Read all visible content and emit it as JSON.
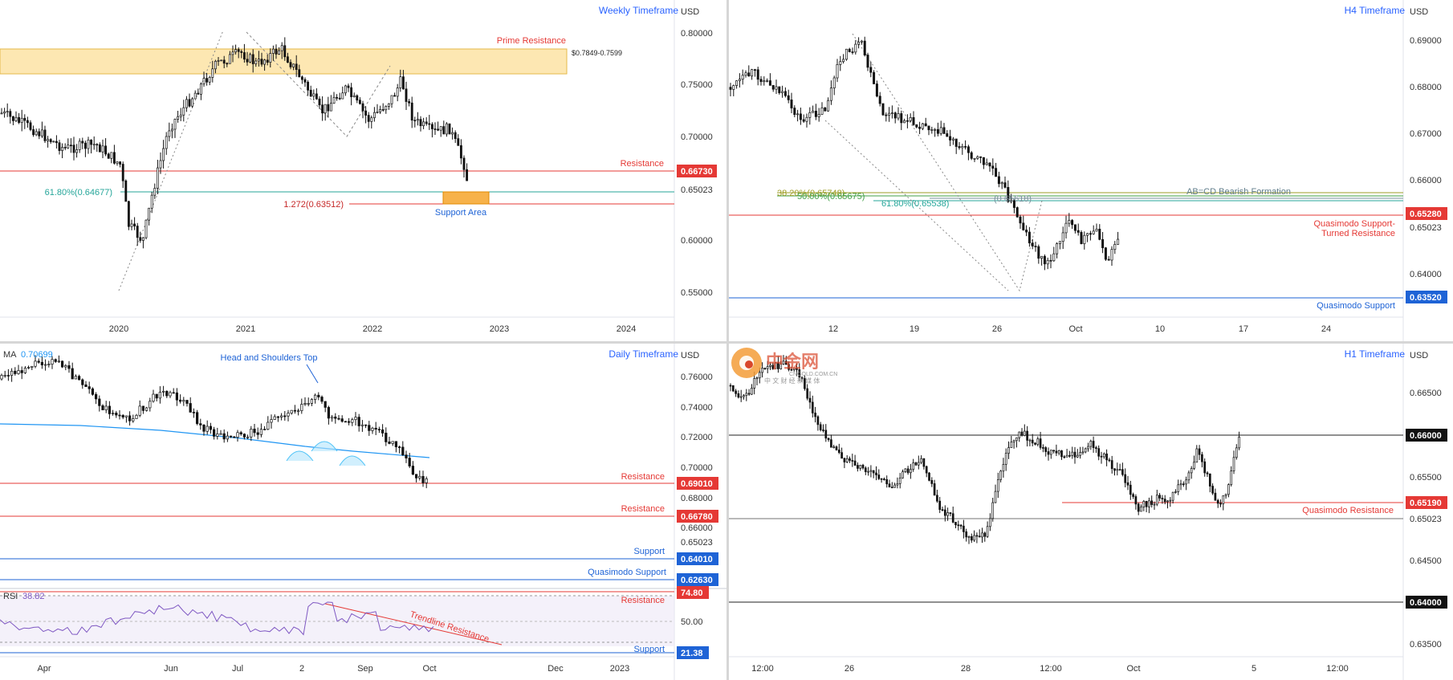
{
  "panels": {
    "weekly": {
      "title": "Weekly Timeframe",
      "currency": "USD",
      "y_ticks": [
        "0.80000",
        "0.75000",
        "0.70000",
        "0.65023",
        "0.60000",
        "0.55000"
      ],
      "x_ticks": [
        "2020",
        "2021",
        "2022",
        "2023",
        "2024"
      ],
      "labels": {
        "prime_resistance": "Prime Resistance",
        "prime_range": "$0.7849-0.7599",
        "resistance": "Resistance",
        "resistance_badge": "0.66730",
        "fib_618": "61.80%(0.64677)",
        "fib_1272": "1.272(0.63512)",
        "support_area": "Support Area"
      }
    },
    "h4": {
      "title": "H4 Timeframe",
      "currency": "USD",
      "y_ticks": [
        "0.69000",
        "0.68000",
        "0.67000",
        "0.66000",
        "0.65023",
        "0.64000"
      ],
      "x_ticks": [
        "12",
        "19",
        "26",
        "Oct",
        "10",
        "17",
        "24"
      ],
      "labels": {
        "fib_382": "38.20%(0.65748)",
        "fib_500": "50.00%(0.65675)",
        "fib_618": "61.80%(0.65538)",
        "abcd_value": "(0.65618)",
        "abcd": "AB=CD Bearish Formation",
        "qm_resist_1": "Quasimodo Support-",
        "qm_resist_2": "Turned Resistance",
        "qm_resist_badge": "0.65280",
        "qm_support": "Quasimodo Support",
        "qm_support_badge": "0.63520"
      }
    },
    "daily": {
      "title": "Daily Timeframe",
      "currency": "USD",
      "ma_label": "MA",
      "ma_value": "0.70699",
      "y_ticks": [
        "0.76000",
        "0.74000",
        "0.72000",
        "0.70000",
        "0.68000",
        "0.66000",
        "0.65023"
      ],
      "x_ticks": [
        "Apr",
        "Jun",
        "Jul",
        "2",
        "Sep",
        "Oct",
        "Dec",
        "2023"
      ],
      "labels": {
        "hs_top": "Head and Shoulders Top",
        "resistance1": "Resistance",
        "resistance1_badge": "0.69010",
        "resistance2": "Resistance",
        "resistance2_badge": "0.66780",
        "support": "Support",
        "support_badge": "0.64010",
        "qm_support": "Quasimodo Support",
        "qm_support_badge": "0.62630"
      },
      "rsi": {
        "label": "RSI",
        "value": "38.82",
        "resistance": "Resistance",
        "resistance_badge": "74.80",
        "mid_tick": "50.00",
        "trendline": "Trendline Resistance",
        "support": "Support",
        "support_badge": "21.38"
      }
    },
    "h1": {
      "title": "H1 Timeframe",
      "currency": "USD",
      "y_ticks": [
        "0.66500",
        "0.65500",
        "0.65023",
        "0.64500",
        "0.63500"
      ],
      "x_ticks": [
        "12:00",
        "26",
        "28",
        "12:00",
        "Oct",
        "5",
        "12:00"
      ],
      "labels": {
        "level_660": "0.66000",
        "qm_resistance": "Quasimodo Resistance",
        "qm_resistance_badge": "0.65190",
        "level_640": "0.64000"
      }
    }
  },
  "watermark": {
    "brand": "中金网",
    "url": "CNGOLD.COM.CN",
    "tagline": "中 文 财 经 新 媒 体"
  },
  "colors": {
    "resistance_red": "#e53935",
    "support_blue": "#1e63d6",
    "fib_teal": "#26a69a",
    "fib_green": "#43a047",
    "fib_olive": "#9e9d24",
    "ma_blue": "#2196f3",
    "rsi_purple": "#7e57c2",
    "prime_zone": "#fde7b2"
  },
  "chart_data": [
    {
      "type": "candlestick",
      "title": "Weekly Timeframe",
      "x": [
        "2020",
        "2021",
        "2022",
        "2023",
        "2024"
      ],
      "ylim": [
        0.53,
        0.82
      ],
      "levels": {
        "prime_resistance": [
          0.7599,
          0.7849
        ],
        "resistance": 0.6673,
        "fib_61_8": 0.64677,
        "fib_1_272": 0.63512,
        "current": 0.65023
      }
    },
    {
      "type": "candlestick",
      "title": "H4 Timeframe",
      "x": [
        "12",
        "19",
        "26",
        "Oct",
        "10",
        "17",
        "24"
      ],
      "ylim": [
        0.632,
        0.696
      ],
      "levels": {
        "fib_38_2": 0.65748,
        "fib_50": 0.65675,
        "fib_61_8": 0.65538,
        "abcd": 0.65618,
        "qm_support_turned_resistance": 0.6528,
        "qm_support": 0.6352,
        "current": 0.65023
      }
    },
    {
      "type": "candlestick",
      "title": "Daily Timeframe",
      "x": [
        "Apr",
        "Jun",
        "Jul",
        "2",
        "Sep",
        "Oct",
        "Dec",
        "2023"
      ],
      "ylim": [
        0.62,
        0.77
      ],
      "levels": {
        "resistance_1": 0.6901,
        "resistance_2": 0.6678,
        "support": 0.6401,
        "qm_support": 0.6263,
        "ma": 0.70699,
        "current": 0.65023
      },
      "rsi": {
        "value": 38.82,
        "resistance": 74.8,
        "support": 21.38
      }
    },
    {
      "type": "candlestick",
      "title": "H1 Timeframe",
      "x": [
        "12:00",
        "26",
        "28",
        "12:00",
        "Oct",
        "5",
        "12:00"
      ],
      "ylim": [
        0.633,
        0.669
      ],
      "levels": {
        "level_1": 0.66,
        "qm_resistance": 0.6519,
        "level_2": 0.64,
        "current": 0.65023
      }
    }
  ]
}
